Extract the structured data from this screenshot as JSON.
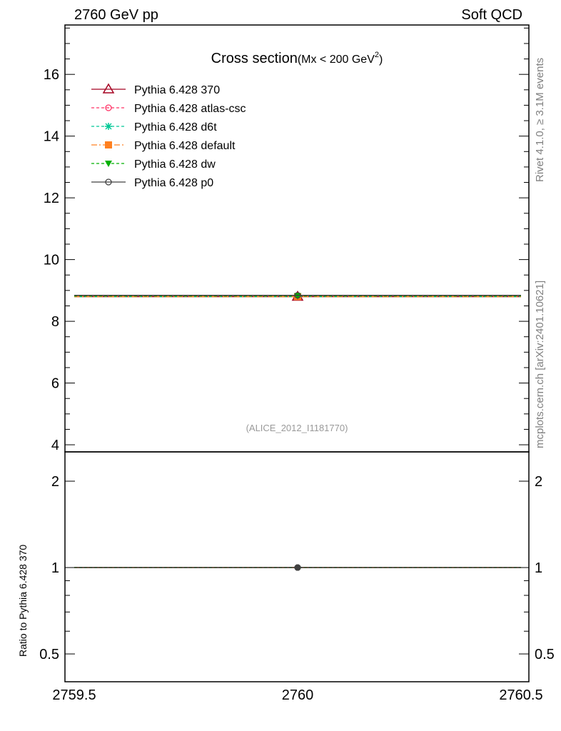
{
  "chart_data": {
    "type": "scatter",
    "header_left": "2760 GeV pp",
    "header_right": "Soft QCD",
    "title": "Cross section",
    "title_sub": "(Mx < 200 GeV",
    "title_sup": "2",
    "title_close": ")",
    "side_label_top": "Rivet 4.1.0, ≥ 3.1M events",
    "side_label_bottom": "mcplots.cern.ch [arXiv:2401.10621]",
    "analysis_label": "(ALICE_2012_I1181770)",
    "ratio_ylabel": "Ratio to Pythia 6.428 370",
    "xlim": [
      2759.5,
      2760.5
    ],
    "ylim": [
      3.77,
      17.6
    ],
    "ratio_ylim": [
      0.4,
      2.53
    ],
    "xticks": [
      "2759.5",
      "2760",
      "2760.5"
    ],
    "xtick_values": [
      2759.5,
      2760,
      2760.5
    ],
    "yticks": [
      "4",
      "6",
      "8",
      "10",
      "12",
      "14",
      "16"
    ],
    "ytick_values": [
      4,
      6,
      8,
      10,
      12,
      14,
      16
    ],
    "ratio_yticks": [
      "0.5",
      "1",
      "2"
    ],
    "ratio_ytick_values": [
      0.5,
      1,
      2
    ],
    "series": [
      {
        "name": "Pythia 6.428 370",
        "color": "#a50021",
        "dash": "",
        "marker": "triangle-open",
        "x": [
          2760
        ],
        "xerr": [
          0.5
        ],
        "y": [
          8.8
        ],
        "ratio": [
          1.0
        ]
      },
      {
        "name": "Pythia 6.428 atlas-csc",
        "color": "#ff3366",
        "dash": "4,3",
        "marker": "circle-open",
        "x": [
          2760
        ],
        "xerr": [
          0.5
        ],
        "y": [
          8.82
        ],
        "ratio": [
          1.0
        ]
      },
      {
        "name": "Pythia 6.428 d6t",
        "color": "#00c896",
        "dash": "4,3",
        "marker": "star",
        "x": [
          2760
        ],
        "xerr": [
          0.5
        ],
        "y": [
          8.8
        ],
        "ratio": [
          1.0
        ]
      },
      {
        "name": "Pythia 6.428 default",
        "color": "#ff8020",
        "dash": "8,3,2,3",
        "marker": "square",
        "x": [
          2760
        ],
        "xerr": [
          0.5
        ],
        "y": [
          8.8
        ],
        "ratio": [
          1.0
        ]
      },
      {
        "name": "Pythia 6.428 dw",
        "color": "#00b000",
        "dash": "4,3",
        "marker": "triangle-down",
        "x": [
          2760
        ],
        "xerr": [
          0.5
        ],
        "y": [
          8.82
        ],
        "ratio": [
          1.0
        ]
      },
      {
        "name": "Pythia 6.428 p0",
        "color": "#404040",
        "dash": "",
        "marker": "circle-open",
        "x": [
          2760
        ],
        "xerr": [
          0.5
        ],
        "y": [
          8.84
        ],
        "ratio": [
          1.0
        ]
      }
    ]
  }
}
